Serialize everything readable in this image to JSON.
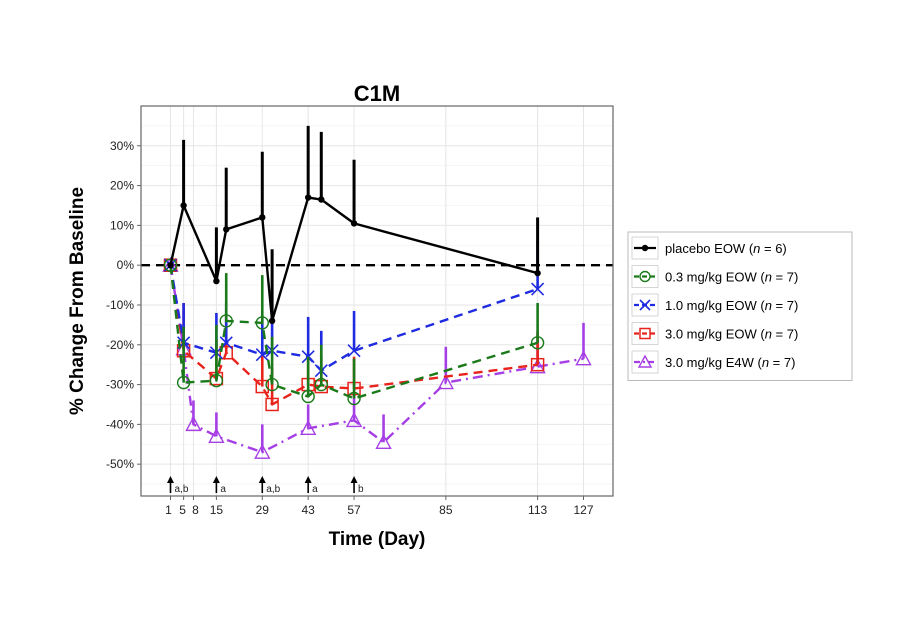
{
  "chart_data": {
    "type": "line",
    "title": "C1M",
    "xlabel": "Time (Day)",
    "ylabel": "% Change From Baseline",
    "ylim": [
      -58,
      40
    ],
    "xlim": [
      -8,
      136
    ],
    "x_ticks": [
      1,
      5,
      8,
      15,
      29,
      43,
      57,
      85,
      113,
      127
    ],
    "x_tick_labels": [
      "1",
      "5",
      "8",
      "15",
      "29",
      "43",
      "57",
      "85",
      "113",
      "127"
    ],
    "y_ticks": [
      30,
      20,
      10,
      0,
      -10,
      -20,
      -30,
      -40,
      -50
    ],
    "y_tick_labels": [
      "30%",
      "20%",
      "10%",
      "0%",
      "-10%",
      "-20%",
      "-30%",
      "-40%",
      "-50%"
    ],
    "grid": true,
    "reference_line": 0,
    "legend_position": "right",
    "dose_arrows": [
      {
        "x": 1,
        "label": "a,b"
      },
      {
        "x": 15,
        "label": "a"
      },
      {
        "x": 29,
        "label": "a,b"
      },
      {
        "x": 43,
        "label": "a"
      },
      {
        "x": 57,
        "label": "b"
      }
    ],
    "series": [
      {
        "name": "placebo EOW",
        "n": "6",
        "color": "#000000",
        "marker": "dot",
        "dash": "solid",
        "x": [
          1,
          5,
          15,
          18,
          29,
          32,
          43,
          47,
          57,
          113
        ],
        "y": [
          0,
          15,
          -4,
          9,
          12,
          -14,
          17,
          16.5,
          10.5,
          -2
        ],
        "err": [
          0,
          16.5,
          13.5,
          15.5,
          16.5,
          18,
          18,
          17,
          16,
          14
        ]
      },
      {
        "name": "0.3 mg/kg EOW",
        "n": "7",
        "color": "#1a7a1a",
        "marker": "circle",
        "dash": "dashed",
        "x": [
          1,
          5,
          15,
          18,
          29,
          32,
          43,
          47,
          57,
          113
        ],
        "y": [
          0,
          -29.5,
          -29,
          -14,
          -14.5,
          -30,
          -33,
          -30,
          -33.5,
          -19.5
        ],
        "err": [
          0,
          14,
          14,
          12,
          12,
          12,
          10,
          10,
          10,
          10
        ]
      },
      {
        "name": "1.0 mg/kg EOW",
        "n": "7",
        "color": "#1f2be0",
        "marker": "x",
        "dash": "dashed",
        "x": [
          1,
          5,
          15,
          18,
          29,
          32,
          43,
          47,
          57,
          113
        ],
        "y": [
          0,
          -19.5,
          -22,
          -19.5,
          -22.5,
          -21.5,
          -23,
          -26.5,
          -21.5,
          -6
        ],
        "err": [
          0,
          10,
          10,
          10,
          10,
          10,
          10,
          10,
          10,
          12
        ]
      },
      {
        "name": "3.0 mg/kg EOW",
        "n": "7",
        "color": "#e8231c",
        "marker": "square",
        "dash": "dashed",
        "x": [
          1,
          5,
          15,
          18,
          29,
          32,
          43,
          47,
          57,
          113
        ],
        "y": [
          0,
          -21.5,
          -28.5,
          -22,
          -30.5,
          -35,
          -30,
          -30.5,
          -31,
          -25
        ],
        "err": [
          0,
          12,
          10,
          10,
          9,
          9,
          8,
          8,
          8,
          8
        ]
      },
      {
        "name": "3.0 mg/kg E4W",
        "n": "7",
        "color": "#a63ee6",
        "marker": "triangle",
        "dash": "dashdot",
        "x": [
          1,
          5,
          8,
          15,
          29,
          43,
          57,
          66,
          85,
          113,
          127
        ],
        "y": [
          0,
          -21,
          -40,
          -43,
          -47,
          -41,
          -39,
          -44.5,
          -29.5,
          -25.5,
          -23.5
        ],
        "err": [
          0,
          6,
          6,
          6,
          7,
          6,
          7,
          7,
          9,
          9,
          9
        ]
      }
    ]
  }
}
